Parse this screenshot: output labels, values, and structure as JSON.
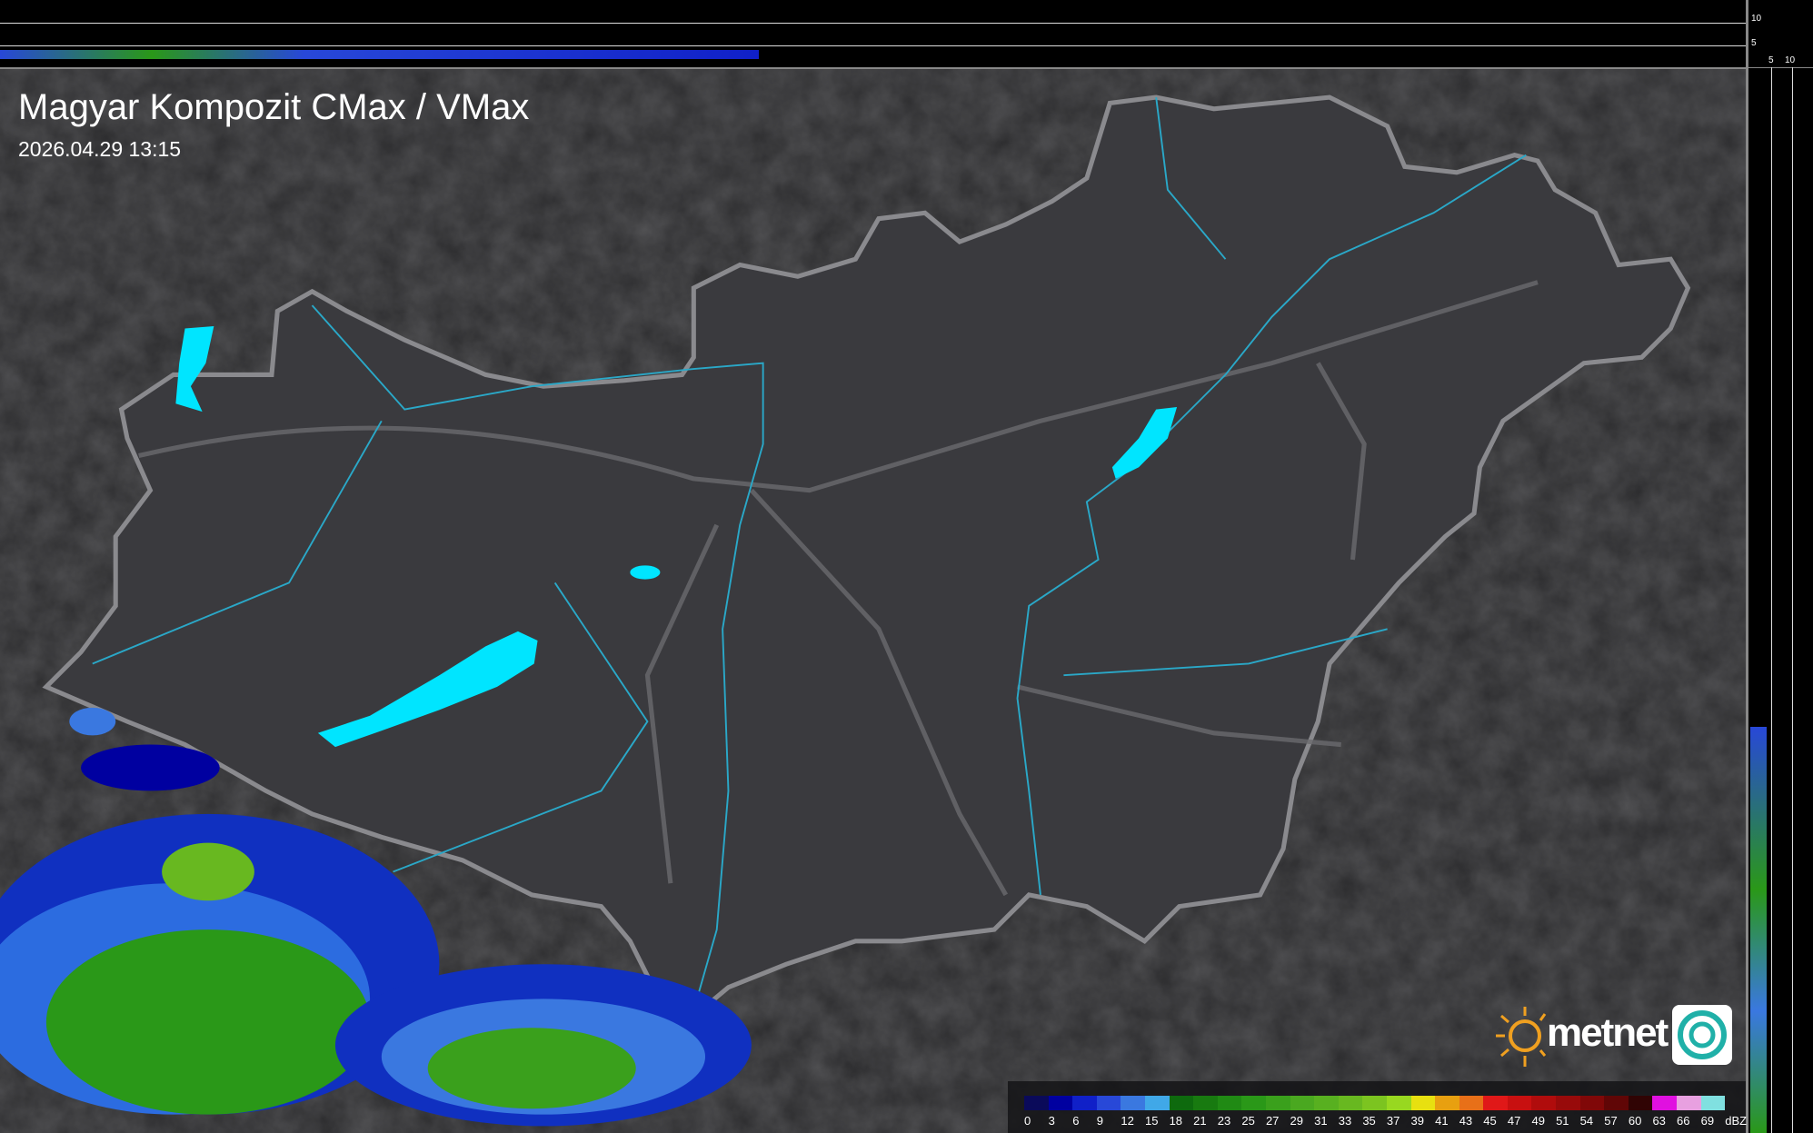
{
  "map": {
    "title": "Magyar Kompozit CMax / VMax",
    "timestamp": "2026.04.29 13:15"
  },
  "profile_axes": {
    "top_ticks": [
      "10",
      "5"
    ],
    "right_ticks": [
      "5",
      "10"
    ]
  },
  "legend": {
    "unit": "dBZ",
    "values": [
      "0",
      "3",
      "6",
      "9",
      "12",
      "15",
      "18",
      "21",
      "23",
      "25",
      "27",
      "29",
      "31",
      "33",
      "35",
      "37",
      "39",
      "41",
      "43",
      "45",
      "47",
      "49",
      "51",
      "54",
      "57",
      "60",
      "63",
      "66",
      "69"
    ],
    "colors": [
      "#0a0a5a",
      "#0000a0",
      "#1020c8",
      "#2848d8",
      "#3a78e0",
      "#40a8e8",
      "#0e6a0e",
      "#187a10",
      "#208a14",
      "#2a9818",
      "#3aa01c",
      "#4aa820",
      "#58b020",
      "#68b820",
      "#7cc420",
      "#98d820",
      "#e8e010",
      "#e8a010",
      "#e87018",
      "#e01818",
      "#c81010",
      "#b00c0c",
      "#980a0a",
      "#800808",
      "#600606",
      "#300404",
      "#e010e0",
      "#e8a0e0",
      "#80e0e0"
    ]
  },
  "logo": {
    "brand": "metnet"
  },
  "colors": {
    "lakes": "#00e5ff",
    "rivers": "#2aa8c8",
    "borders": "#8a8a8e",
    "background": "#2c2c2e"
  }
}
